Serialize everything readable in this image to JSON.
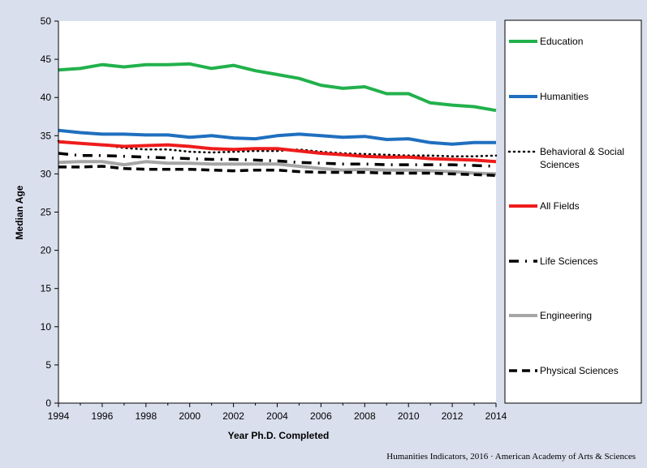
{
  "chart_data": {
    "type": "line",
    "title": "",
    "xlabel": "Year Ph.D. Completed",
    "ylabel": "Median Age",
    "xlim": [
      1994,
      2014
    ],
    "ylim": [
      0,
      50
    ],
    "x_ticks": [
      1994,
      1996,
      1998,
      2000,
      2002,
      2004,
      2006,
      2008,
      2010,
      2012,
      2014
    ],
    "y_ticks": [
      0,
      5,
      10,
      15,
      20,
      25,
      30,
      35,
      40,
      45,
      50
    ],
    "grid": false,
    "legend_position": "right",
    "x": [
      1994,
      1995,
      1996,
      1997,
      1998,
      1999,
      2000,
      2001,
      2002,
      2003,
      2004,
      2005,
      2006,
      2007,
      2008,
      2009,
      2010,
      2011,
      2012,
      2013,
      2014
    ],
    "series": [
      {
        "name": "Education",
        "color": "#22b14c",
        "style": "solid",
        "values": [
          43.6,
          43.8,
          44.3,
          44.0,
          44.3,
          44.3,
          44.4,
          43.8,
          44.2,
          43.5,
          43.0,
          42.5,
          41.6,
          41.2,
          41.4,
          40.5,
          40.5,
          39.3,
          39.0,
          38.8,
          38.3
        ]
      },
      {
        "name": "Humanities",
        "color": "#1f6fbf",
        "style": "solid",
        "values": [
          35.7,
          35.4,
          35.2,
          35.2,
          35.1,
          35.1,
          34.8,
          35.0,
          34.7,
          34.6,
          35.0,
          35.2,
          35.0,
          34.8,
          34.9,
          34.5,
          34.6,
          34.1,
          33.9,
          34.1,
          34.1
        ]
      },
      {
        "name": "Behavioral & Social Sciences",
        "color": "#000000",
        "style": "dotted",
        "values": [
          34.3,
          34.0,
          33.8,
          33.4,
          33.2,
          33.2,
          32.9,
          32.8,
          32.9,
          33.0,
          33.0,
          33.2,
          32.9,
          32.7,
          32.6,
          32.5,
          32.4,
          32.4,
          32.3,
          32.3,
          32.4
        ]
      },
      {
        "name": "All Fields",
        "color": "#ee1c1c",
        "style": "solid",
        "values": [
          34.2,
          34.0,
          33.8,
          33.6,
          33.7,
          33.8,
          33.6,
          33.3,
          33.2,
          33.3,
          33.3,
          33.0,
          32.7,
          32.5,
          32.3,
          32.2,
          32.2,
          32.0,
          31.9,
          31.8,
          31.6
        ]
      },
      {
        "name": "Life Sciences",
        "color": "#000000",
        "style": "dashdot",
        "values": [
          32.7,
          32.4,
          32.4,
          32.3,
          32.2,
          32.1,
          32.0,
          31.9,
          31.9,
          31.8,
          31.7,
          31.5,
          31.4,
          31.3,
          31.3,
          31.2,
          31.2,
          31.2,
          31.2,
          31.1,
          31.0
        ]
      },
      {
        "name": "Engineering",
        "color": "#a6a6a6",
        "style": "solid",
        "values": [
          31.5,
          31.6,
          31.6,
          31.2,
          31.6,
          31.4,
          31.4,
          31.3,
          31.3,
          31.3,
          31.3,
          31.0,
          30.7,
          30.5,
          30.6,
          30.5,
          30.5,
          30.4,
          30.3,
          30.1,
          30.0
        ]
      },
      {
        "name": "Physical Sciences",
        "color": "#000000",
        "style": "dashed",
        "values": [
          30.9,
          30.9,
          31.0,
          30.7,
          30.6,
          30.6,
          30.6,
          30.5,
          30.4,
          30.5,
          30.5,
          30.3,
          30.2,
          30.2,
          30.2,
          30.1,
          30.1,
          30.1,
          30.0,
          29.9,
          29.8
        ]
      }
    ],
    "legend": [
      {
        "line1": "Education",
        "line2": ""
      },
      {
        "line1": "Humanities",
        "line2": ""
      },
      {
        "line1": "Behavioral & Social",
        "line2": "Sciences"
      },
      {
        "line1": "All Fields",
        "line2": ""
      },
      {
        "line1": "Life Sciences",
        "line2": ""
      },
      {
        "line1": "Engineering",
        "line2": ""
      },
      {
        "line1": "Physical Sciences",
        "line2": ""
      }
    ],
    "credit": "Humanities Indicators, 2016 · American Academy of Arts & Sciences"
  },
  "colors": {
    "background": "#d9dfed",
    "plot_background": "#ffffff",
    "axis": "#000000"
  }
}
